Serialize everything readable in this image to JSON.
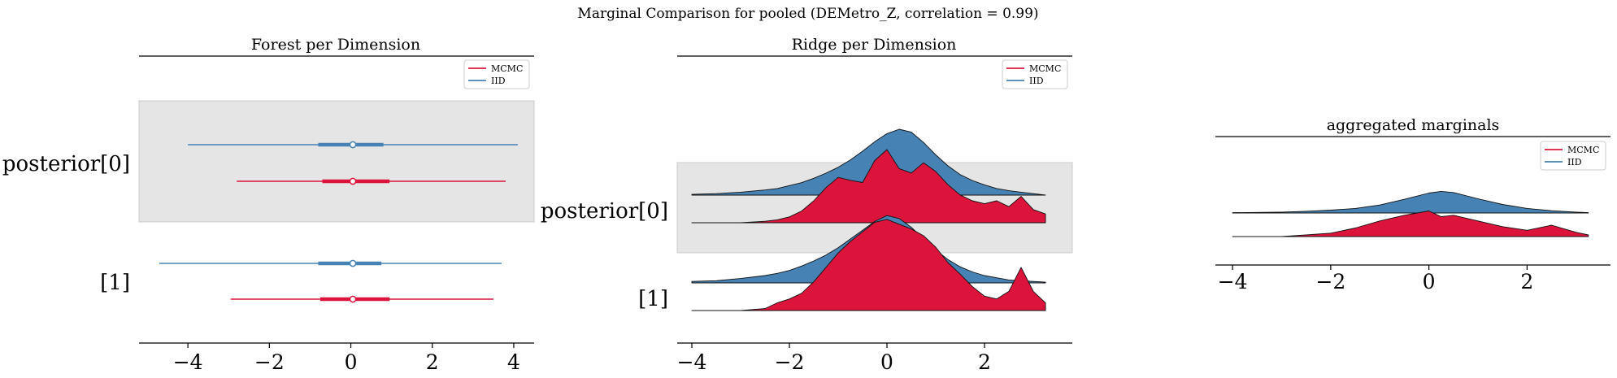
{
  "figure": {
    "suptitle": "Marginal Comparison for pooled (DEMetro_Z, correlation = 0.99)"
  },
  "colors": {
    "MCMC": "#dc143c",
    "IID": "#4682b4",
    "band": "#e5e5e5",
    "axis": "#000000"
  },
  "legend": [
    "MCMC",
    "IID"
  ],
  "chart_data": [
    {
      "type": "forest",
      "title": "Forest per Dimension",
      "xlim": [
        -5.2,
        4.5
      ],
      "xticks": [
        -4,
        -2,
        0,
        2,
        4
      ],
      "rows": [
        "posterior[0]",
        "[1]"
      ],
      "grid": false,
      "legend_position": "top-right",
      "series": [
        {
          "name": "IID",
          "row": 0,
          "hdi": [
            -4.0,
            4.1
          ],
          "iqr": [
            -0.8,
            0.8
          ],
          "median": 0.05
        },
        {
          "name": "MCMC",
          "row": 0,
          "hdi": [
            -2.8,
            3.8
          ],
          "iqr": [
            -0.7,
            0.95
          ],
          "median": 0.05
        },
        {
          "name": "IID",
          "row": 1,
          "hdi": [
            -4.7,
            3.7
          ],
          "iqr": [
            -0.8,
            0.75
          ],
          "median": 0.05
        },
        {
          "name": "MCMC",
          "row": 1,
          "hdi": [
            -2.95,
            3.5
          ],
          "iqr": [
            -0.75,
            0.95
          ],
          "median": 0.05
        }
      ]
    },
    {
      "type": "ridge",
      "title": "Ridge per Dimension",
      "xlim": [
        -4.3,
        3.8
      ],
      "xticks": [
        -4,
        -2,
        0,
        2
      ],
      "rows": [
        "posterior[0]",
        "[1]"
      ],
      "grid": false,
      "legend_position": "top-right",
      "x": [
        -4.0,
        -3.5,
        -3.0,
        -2.5,
        -2.25,
        -2.0,
        -1.75,
        -1.5,
        -1.25,
        -1.0,
        -0.75,
        -0.5,
        -0.25,
        0.0,
        0.25,
        0.5,
        0.75,
        1.0,
        1.25,
        1.5,
        1.75,
        2.0,
        2.25,
        2.5,
        2.75,
        3.0,
        3.25
      ],
      "series": [
        {
          "name": "IID",
          "row": 0,
          "density": [
            0.01,
            0.02,
            0.04,
            0.07,
            0.09,
            0.13,
            0.17,
            0.23,
            0.3,
            0.38,
            0.48,
            0.6,
            0.73,
            0.84,
            0.9,
            0.86,
            0.72,
            0.55,
            0.4,
            0.28,
            0.2,
            0.14,
            0.09,
            0.06,
            0.04,
            0.02,
            0.0
          ]
        },
        {
          "name": "MCMC",
          "row": 0,
          "density": [
            0.0,
            0.0,
            0.0,
            0.02,
            0.04,
            0.08,
            0.16,
            0.3,
            0.48,
            0.62,
            0.58,
            0.55,
            0.85,
            1.0,
            0.74,
            0.68,
            0.82,
            0.7,
            0.52,
            0.38,
            0.3,
            0.26,
            0.3,
            0.22,
            0.36,
            0.18,
            0.12
          ]
        },
        {
          "name": "IID",
          "row": 1,
          "density": [
            0.02,
            0.03,
            0.06,
            0.1,
            0.13,
            0.17,
            0.23,
            0.3,
            0.38,
            0.48,
            0.6,
            0.72,
            0.84,
            0.92,
            0.88,
            0.76,
            0.6,
            0.45,
            0.32,
            0.22,
            0.15,
            0.1,
            0.07,
            0.04,
            0.03,
            0.02,
            0.01
          ]
        },
        {
          "name": "MCMC",
          "row": 1,
          "density": [
            0.0,
            0.0,
            0.0,
            0.02,
            0.08,
            0.12,
            0.18,
            0.3,
            0.45,
            0.6,
            0.72,
            0.82,
            0.92,
            0.95,
            0.9,
            0.85,
            0.78,
            0.66,
            0.5,
            0.38,
            0.25,
            0.15,
            0.12,
            0.2,
            0.45,
            0.2,
            0.08
          ]
        }
      ]
    },
    {
      "type": "ridge",
      "title": "aggregated marginals",
      "xlim": [
        -4.35,
        3.7
      ],
      "xticks": [
        -4,
        -2,
        0,
        2
      ],
      "grid": false,
      "legend_position": "top-right",
      "x": [
        -4.0,
        -3.5,
        -3.0,
        -2.5,
        -2.0,
        -1.5,
        -1.0,
        -0.5,
        0.0,
        0.25,
        0.5,
        1.0,
        1.5,
        2.0,
        2.5,
        3.0,
        3.25
      ],
      "series": [
        {
          "name": "IID",
          "density": [
            0.01,
            0.02,
            0.03,
            0.06,
            0.1,
            0.16,
            0.28,
            0.48,
            0.7,
            0.76,
            0.72,
            0.5,
            0.3,
            0.16,
            0.08,
            0.03,
            0.01
          ]
        },
        {
          "name": "MCMC",
          "density": [
            0.0,
            0.0,
            0.0,
            0.06,
            0.12,
            0.3,
            0.55,
            0.75,
            0.9,
            0.7,
            0.75,
            0.55,
            0.35,
            0.22,
            0.4,
            0.15,
            0.06
          ]
        }
      ]
    }
  ]
}
